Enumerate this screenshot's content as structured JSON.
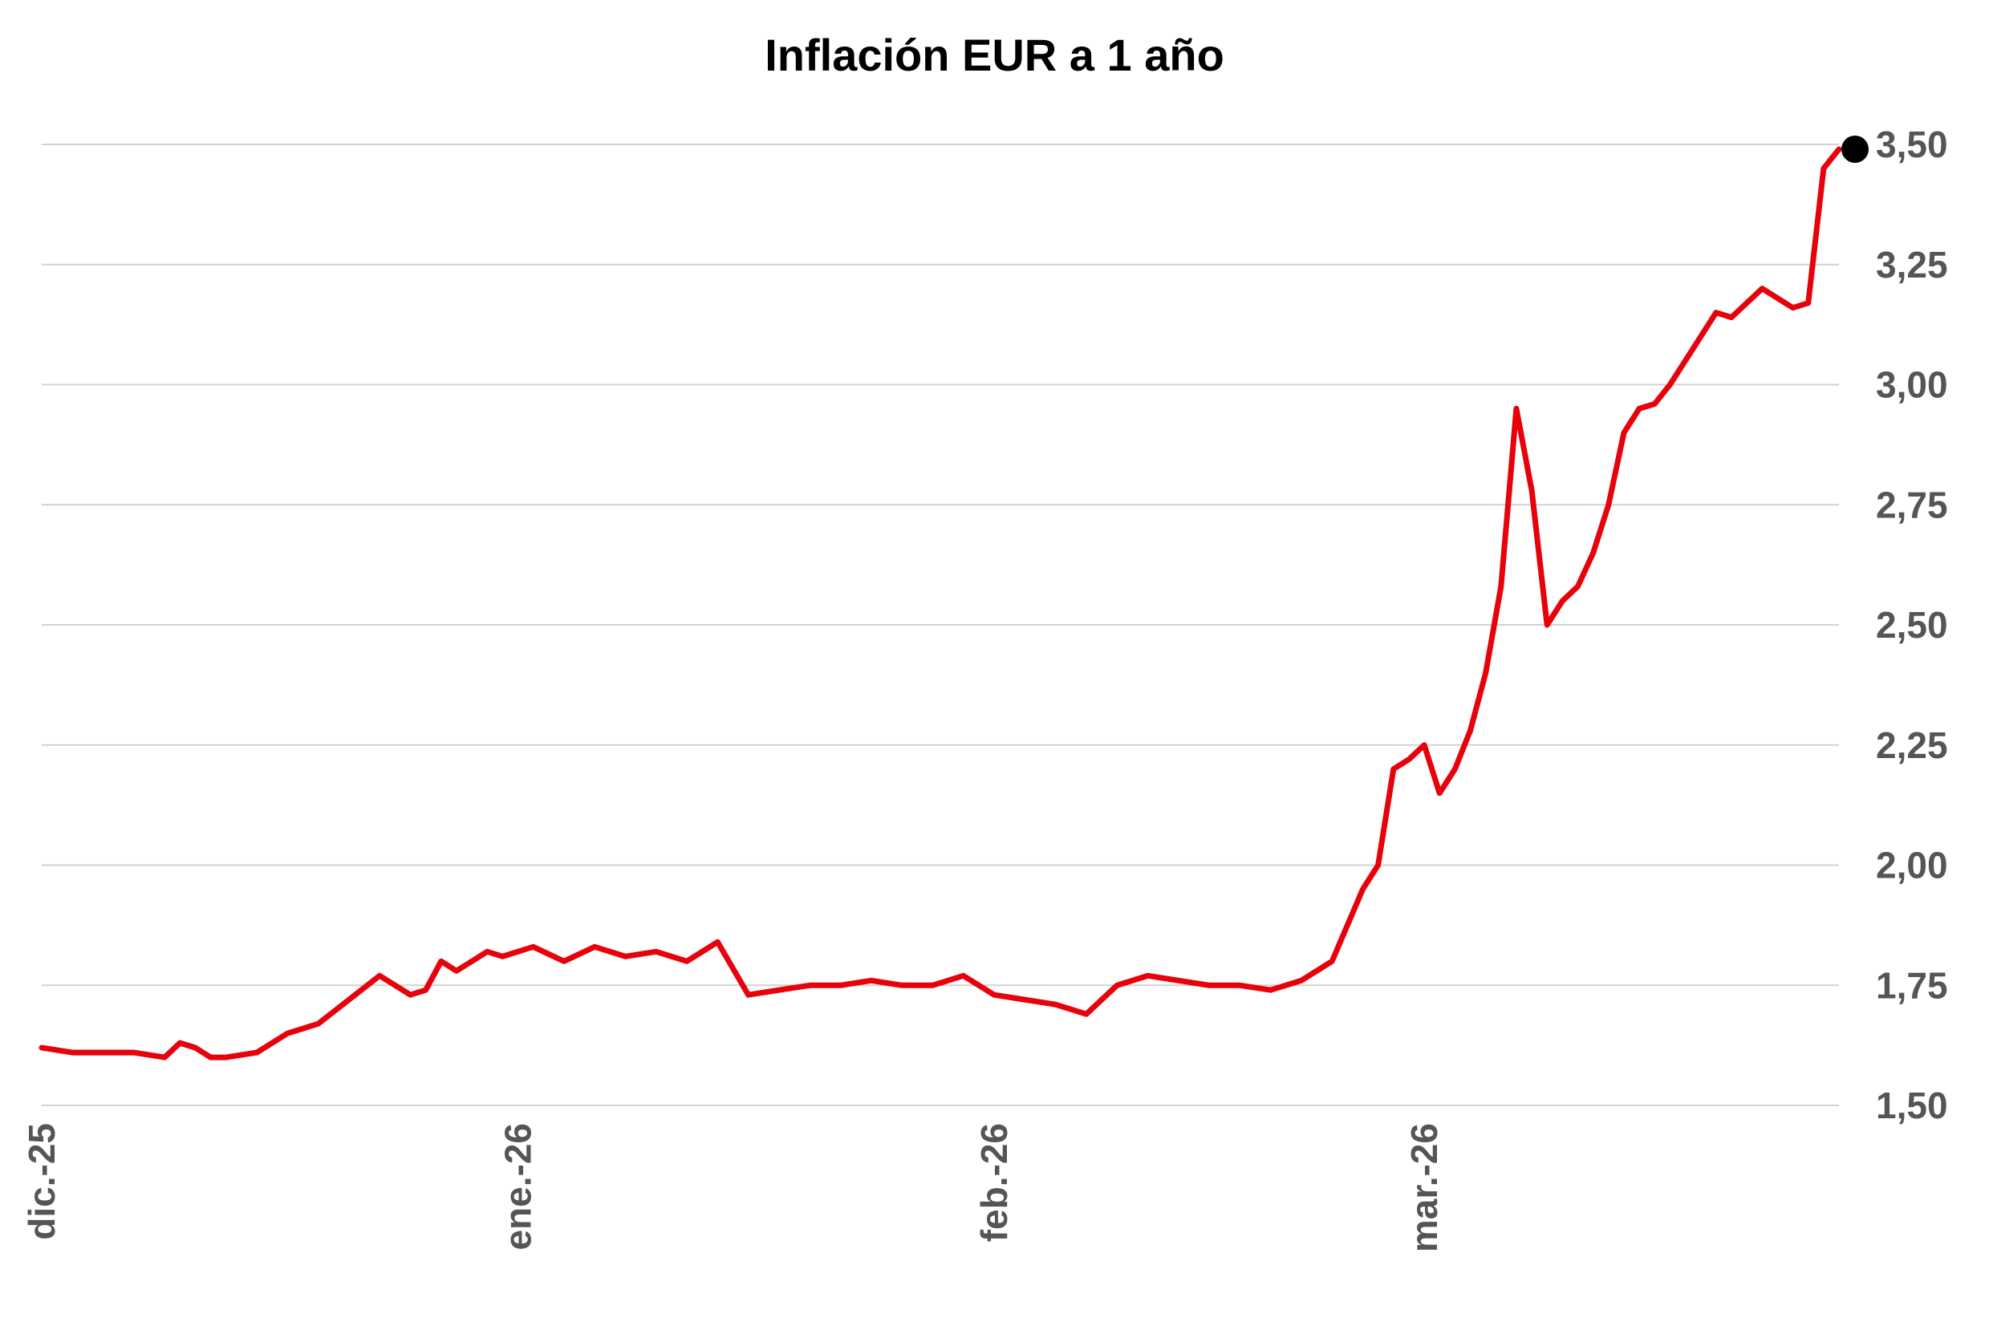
{
  "chart_data": {
    "type": "line",
    "title": "Inflación EUR a 1 año",
    "xlabel": "",
    "ylabel": "",
    "ylim": [
      1.5,
      3.5
    ],
    "x_ticks": [
      "dic.-25",
      "ene.-26",
      "feb.-26",
      "mar.-26"
    ],
    "y_ticks": [
      "1,50",
      "1,75",
      "2,00",
      "2,25",
      "2,50",
      "2,75",
      "3,00",
      "3,25",
      "3,50"
    ],
    "y_tick_values": [
      1.5,
      1.75,
      2.0,
      2.25,
      2.5,
      2.75,
      3.0,
      3.25,
      3.5
    ],
    "grid": true,
    "series": [
      {
        "color": "#e8000b",
        "x": [
          "2025-12-01",
          "2025-12-03",
          "2025-12-05",
          "2025-12-07",
          "2025-12-09",
          "2025-12-10",
          "2025-12-11",
          "2025-12-12",
          "2025-12-13",
          "2025-12-15",
          "2025-12-17",
          "2025-12-19",
          "2025-12-21",
          "2025-12-23",
          "2025-12-25",
          "2025-12-26",
          "2025-12-27",
          "2025-12-28",
          "2025-12-29",
          "2025-12-30",
          "2025-12-31",
          "2026-01-01",
          "2026-01-02",
          "2026-01-04",
          "2026-01-06",
          "2026-01-07",
          "2026-01-08",
          "2026-01-10",
          "2026-01-12",
          "2026-01-14",
          "2026-01-16",
          "2026-01-18",
          "2026-01-20",
          "2026-01-22",
          "2026-01-24",
          "2026-01-26",
          "2026-01-28",
          "2026-01-29",
          "2026-01-30",
          "2026-02-01",
          "2026-02-03",
          "2026-02-05",
          "2026-02-07",
          "2026-02-09",
          "2026-02-11",
          "2026-02-13",
          "2026-02-15",
          "2026-02-17",
          "2026-02-19",
          "2026-02-21",
          "2026-02-23",
          "2026-02-25",
          "2026-02-26",
          "2026-02-27",
          "2026-02-28",
          "2026-03-01",
          "2026-03-02",
          "2026-03-03",
          "2026-03-04",
          "2026-03-05",
          "2026-03-06",
          "2026-03-07",
          "2026-03-08",
          "2026-03-09",
          "2026-03-10",
          "2026-03-11",
          "2026-03-12",
          "2026-03-13",
          "2026-03-14",
          "2026-03-15",
          "2026-03-16",
          "2026-03-17",
          "2026-03-18",
          "2026-03-19",
          "2026-03-20",
          "2026-03-21",
          "2026-03-22",
          "2026-03-23",
          "2026-03-24",
          "2026-03-25",
          "2026-03-26",
          "2026-03-27",
          "2026-03-28"
        ],
        "y": [
          1.62,
          1.61,
          1.61,
          1.61,
          1.6,
          1.63,
          1.62,
          1.6,
          1.6,
          1.61,
          1.65,
          1.67,
          1.72,
          1.77,
          1.73,
          1.74,
          1.8,
          1.78,
          1.8,
          1.82,
          1.81,
          1.82,
          1.83,
          1.8,
          1.83,
          1.82,
          1.81,
          1.82,
          1.8,
          1.84,
          1.73,
          1.74,
          1.75,
          1.75,
          1.76,
          1.75,
          1.75,
          1.76,
          1.77,
          1.73,
          1.72,
          1.71,
          1.69,
          1.75,
          1.77,
          1.76,
          1.75,
          1.75,
          1.74,
          1.76,
          1.8,
          1.95,
          2.0,
          2.2,
          2.22,
          2.25,
          2.15,
          2.2,
          2.28,
          2.4,
          2.58,
          2.95,
          2.78,
          2.5,
          2.55,
          2.58,
          2.65,
          2.75,
          2.9,
          2.95,
          2.96,
          3.0,
          3.05,
          3.1,
          3.15,
          3.14,
          3.17,
          3.2,
          3.18,
          3.16,
          3.17,
          3.45,
          3.49
        ]
      }
    ],
    "end_marker": {
      "x": "2026-03-28",
      "y": 3.49,
      "color": "#000000"
    }
  }
}
